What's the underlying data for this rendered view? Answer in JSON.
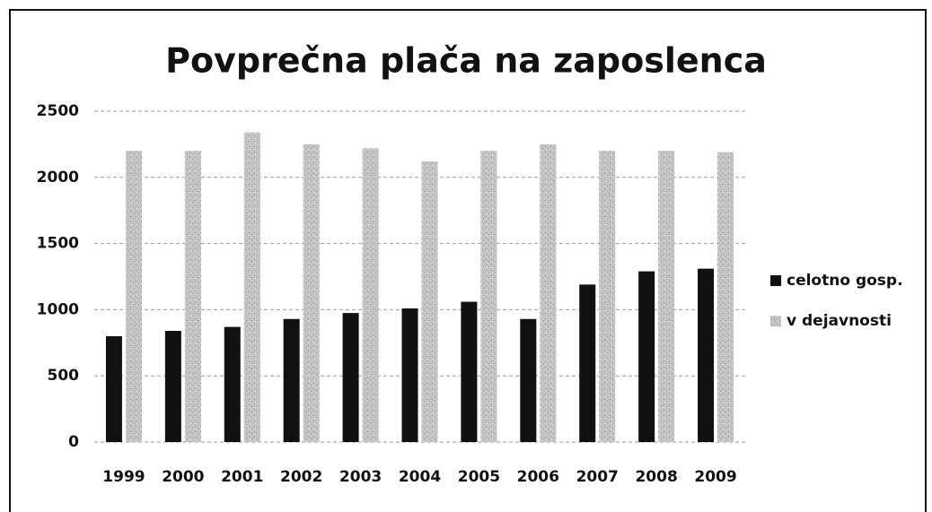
{
  "chart_data": {
    "type": "bar",
    "title": "Povprečna plača na zaposlenca",
    "categories": [
      "1999",
      "2000",
      "2001",
      "2002",
      "2003",
      "2004",
      "2005",
      "2006",
      "2007",
      "2008",
      "2009"
    ],
    "series": [
      {
        "name": "celotno gosp.",
        "color": "#111111",
        "values": [
          800,
          840,
          870,
          930,
          975,
          1010,
          1060,
          930,
          1190,
          1290,
          1310
        ]
      },
      {
        "name": "v dejavnosti",
        "color": "#b8b8b8",
        "values": [
          2200,
          2200,
          2340,
          2250,
          2220,
          2120,
          2200,
          2250,
          2200,
          2200,
          2190
        ]
      }
    ],
    "ylim": [
      0,
      2500
    ],
    "yticks": [
      0,
      500,
      1000,
      1500,
      2000,
      2500
    ],
    "grid": true,
    "legend": "right"
  }
}
